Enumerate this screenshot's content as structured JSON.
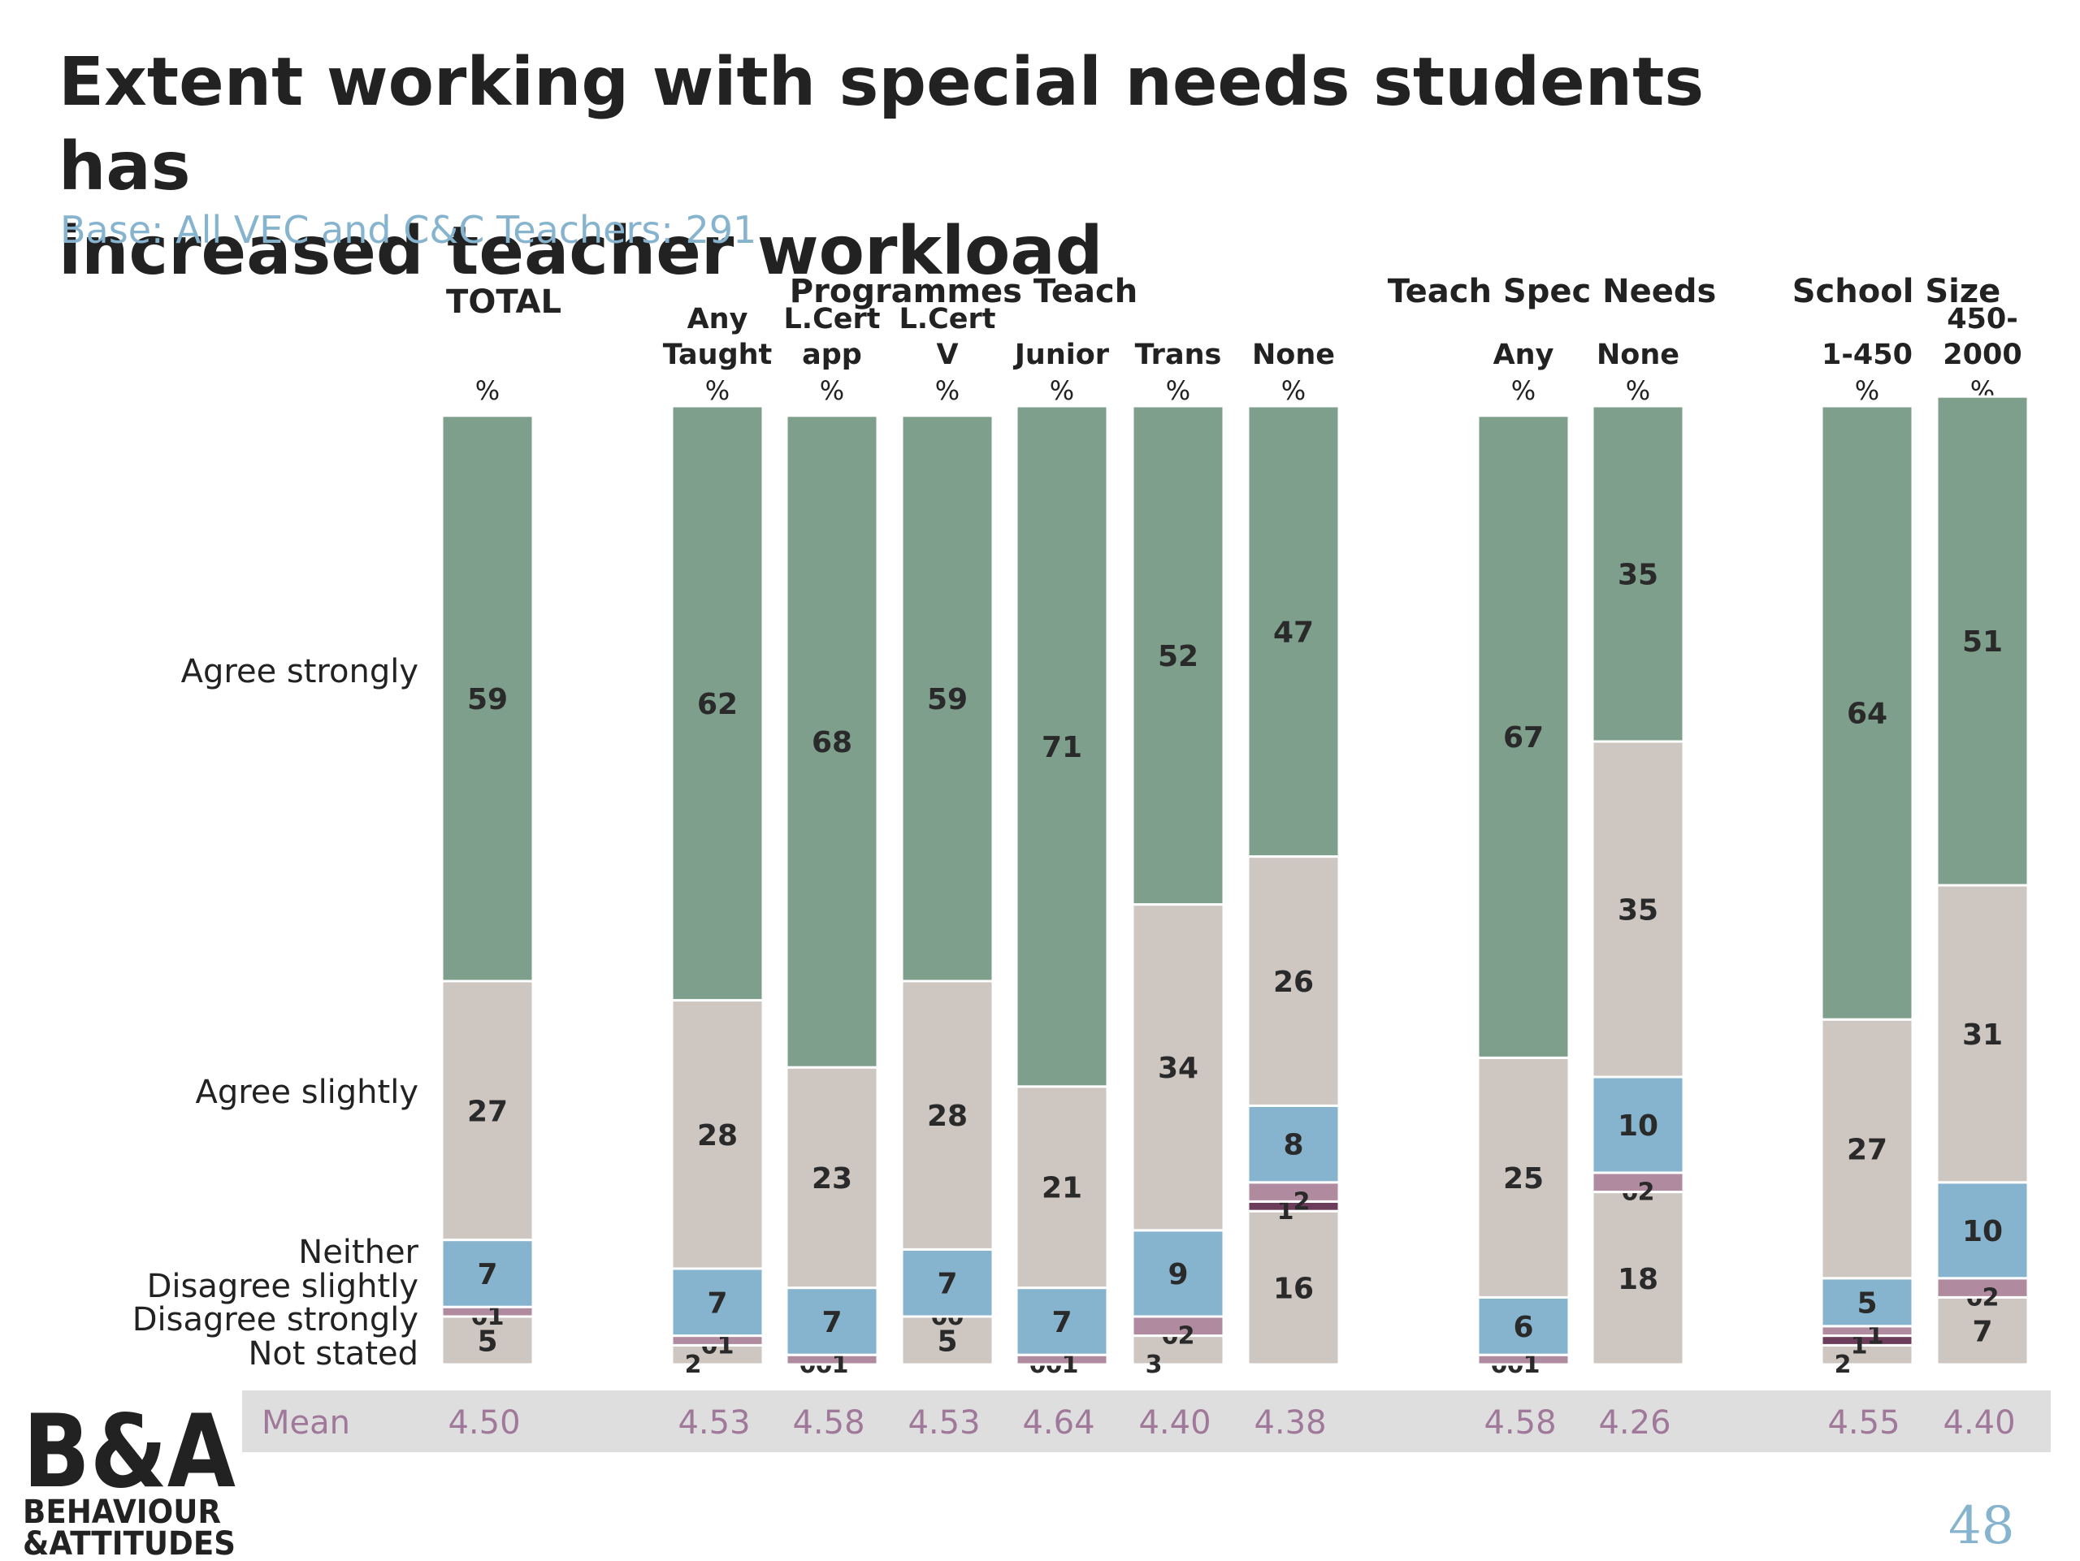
{
  "title_line1": "Extent working with special needs students has",
  "title_line2": "increased teacher workload",
  "subtitle": "Base: All VEC and C&C Teachers: 291",
  "page_number": "48",
  "logo": {
    "line1": "B&A",
    "line2": "BEHAVIOUR",
    "line3": "&ATTITUDES"
  },
  "colors": {
    "agree_strongly": "#7d9f8c",
    "agree_slightly": "#cdc6c1",
    "neither": "#86b4cf",
    "disagree_slightly": "#b08a9e",
    "disagree_strongly": "#6b3d5a",
    "not_stated": "#cdc6c1",
    "mean_band": "#dedede",
    "mean_text": "#a0789a"
  },
  "chart_data": {
    "type": "bar",
    "stacked": true,
    "percent_label": "%",
    "mean_label": "Mean",
    "groups": [
      {
        "label": "TOTAL",
        "columns": [
          0
        ]
      },
      {
        "label": "Programmes Teach",
        "columns": [
          1,
          2,
          3,
          4,
          5,
          6
        ]
      },
      {
        "label": "Teach Spec Needs",
        "columns": [
          7,
          8
        ]
      },
      {
        "label": "School Size",
        "columns": [
          9,
          10
        ]
      }
    ],
    "categories": [
      {
        "label": "",
        "mean": "4.50"
      },
      {
        "label": "Any\nTaught",
        "mean": "4.53"
      },
      {
        "label": "L.Cert\napp",
        "mean": "4.58"
      },
      {
        "label": "L.Cert\nV",
        "mean": "4.53"
      },
      {
        "label": "Junior",
        "mean": "4.64"
      },
      {
        "label": "Trans",
        "mean": "4.40"
      },
      {
        "label": "None",
        "mean": "4.38"
      },
      {
        "label": "Any",
        "mean": "4.58"
      },
      {
        "label": "None",
        "mean": "4.26"
      },
      {
        "label": "1-450",
        "mean": "4.55"
      },
      {
        "label": "450-\n2000",
        "mean": "4.40"
      }
    ],
    "series": [
      {
        "name": "Not stated",
        "color_key": "not_stated",
        "values": [
          5,
          2,
          0,
          5,
          0,
          3,
          16,
          0,
          18,
          2,
          7
        ]
      },
      {
        "name": "Disagree strongly",
        "color_key": "disagree_strongly",
        "values": [
          0,
          0,
          0,
          0,
          0,
          0,
          1,
          0,
          0,
          1,
          0
        ]
      },
      {
        "name": "Disagree slightly",
        "color_key": "disagree_slightly",
        "values": [
          1,
          1,
          1,
          0,
          1,
          2,
          2,
          1,
          2,
          1,
          2
        ]
      },
      {
        "name": "Neither",
        "color_key": "neither",
        "values": [
          7,
          7,
          7,
          7,
          7,
          9,
          8,
          6,
          10,
          5,
          10
        ]
      },
      {
        "name": "Agree slightly",
        "color_key": "agree_slightly",
        "values": [
          27,
          28,
          23,
          28,
          21,
          34,
          26,
          25,
          35,
          27,
          31
        ]
      },
      {
        "name": "Agree strongly",
        "color_key": "agree_strongly",
        "values": [
          59,
          62,
          68,
          59,
          71,
          52,
          47,
          67,
          35,
          64,
          51
        ]
      }
    ],
    "ylim": [
      0,
      100
    ]
  }
}
